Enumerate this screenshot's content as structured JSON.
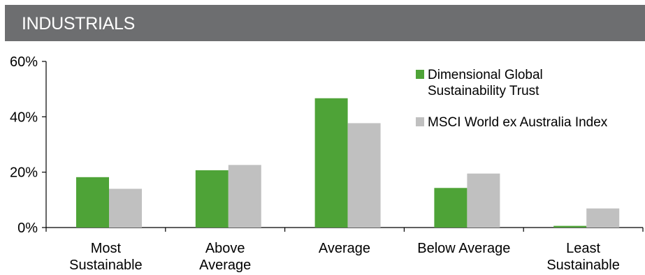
{
  "header": {
    "title": "INDUSTRIALS",
    "background_color": "#6d6e70"
  },
  "chart_data": {
    "type": "bar",
    "title": "INDUSTRIALS",
    "xlabel": "",
    "ylabel": "",
    "categories": [
      [
        "Most",
        "Sustainable"
      ],
      [
        "Above",
        "Average"
      ],
      [
        "Average"
      ],
      [
        "Below Average"
      ],
      [
        "Least",
        "Sustainable"
      ]
    ],
    "series": [
      {
        "name": [
          "Dimensional Global",
          "Sustainability Trust"
        ],
        "color": "#4ea337",
        "values": [
          18.2,
          20.7,
          46.7,
          14.3,
          0.6
        ]
      },
      {
        "name": [
          "MSCI World ex Australia Index"
        ],
        "color": "#c0c0c0",
        "values": [
          14.0,
          22.6,
          37.7,
          19.5,
          6.9
        ]
      }
    ],
    "ylim": [
      0,
      60
    ],
    "yticks": [
      0,
      20,
      40,
      60
    ],
    "ytick_labels": [
      "0%",
      "20%",
      "40%",
      "60%"
    ],
    "grid": false,
    "legend_position": "top-right"
  }
}
